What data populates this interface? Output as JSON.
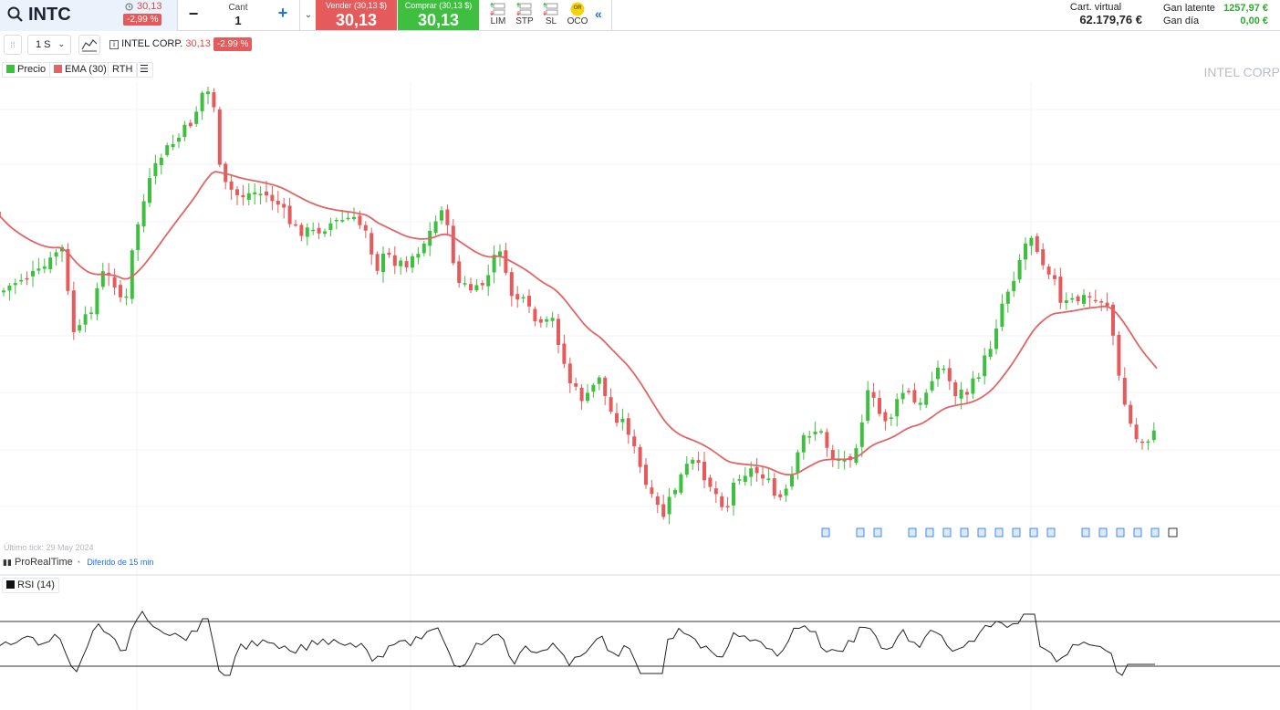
{
  "header": {
    "ticker": "INTC",
    "last_price": "30,13",
    "change_pct": "-2,99 %",
    "qty_label": "Cant",
    "qty_value": "1",
    "sell_label": "Vender (30,13 $)",
    "sell_value": "30,13",
    "buy_label": "Comprar (30,13 $)",
    "buy_value": "30,13",
    "order_types": [
      "LIM",
      "STP",
      "SL",
      "OCO"
    ],
    "oco_badge": "OR",
    "virtual_label": "Cart. virtual",
    "virtual_value": "62.179,76 €",
    "latent_label": "Gan latente",
    "latent_value": "1257,97 €",
    "day_label": "Gan día",
    "day_value": "0,00 €"
  },
  "toolbar": {
    "timeframe": "1 S",
    "instrument_name": "INTEL CORP.",
    "instrument_price": "30,13",
    "instrument_change": "-2.99 %"
  },
  "legend": {
    "price": "Precio",
    "ema": "EMA (30)",
    "rth": "RTH"
  },
  "watermark": "INTEL CORP",
  "footer": {
    "last_tick": "Último tick: 29 May 2024",
    "provider": "ProRealTime",
    "delay": "Diferido de 15 min"
  },
  "rsi": {
    "label": "RSI (14)"
  },
  "colors": {
    "up": "#3fbf3f",
    "down": "#e55a5a",
    "ema": "#e06666",
    "accent": "#1a73e8"
  },
  "chart_data": {
    "type": "candlestick",
    "series": [
      {
        "name": "Precio",
        "values": []
      },
      {
        "name": "EMA (30)",
        "values": []
      }
    ],
    "indicator": {
      "name": "RSI (14)",
      "levels": [
        70,
        30
      ]
    },
    "last_price": 30.13
  }
}
